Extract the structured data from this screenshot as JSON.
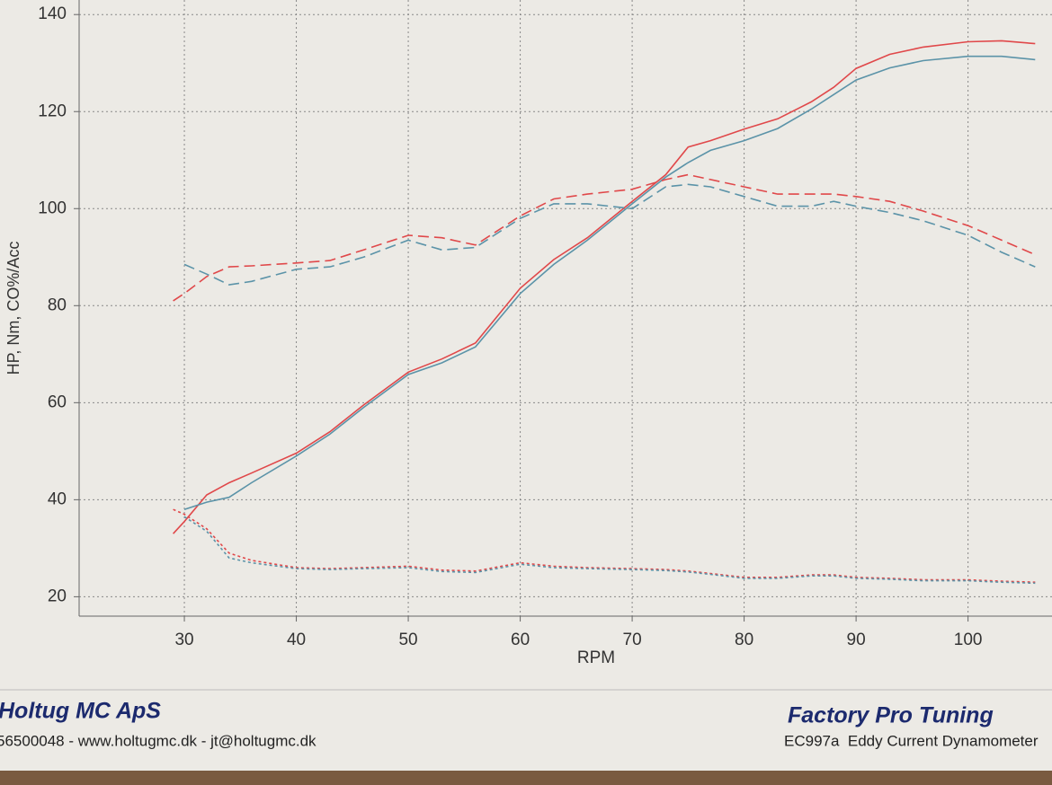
{
  "chart_data": {
    "type": "line",
    "x_label": "RPM",
    "y_label": "HP, Nm, CO%/Acc",
    "xlim": [
      20.6,
      107.5
    ],
    "ylim": [
      16,
      143
    ],
    "xticks": [
      30,
      40,
      50,
      60,
      70,
      80,
      90,
      100
    ],
    "yticks": [
      20,
      40,
      60,
      80,
      100,
      120,
      140
    ],
    "grid": true,
    "x": [
      29,
      30,
      32,
      34,
      36,
      40,
      43,
      46,
      50,
      53,
      56,
      60,
      63,
      66,
      70,
      73,
      75,
      77,
      80,
      83,
      86,
      88,
      90,
      93,
      96,
      100,
      103,
      106
    ],
    "series": [
      {
        "color": "#e0484a",
        "dash": "solid",
        "values": [
          33,
          35.5,
          41,
          43.5,
          45.5,
          49.6,
          54,
          59.5,
          66.3,
          69,
          72.3,
          83.6,
          89.5,
          94,
          101.5,
          107,
          112.7,
          114,
          116.4,
          118.5,
          122,
          125,
          128.9,
          131.8,
          133.3,
          134.4,
          134.6,
          134
        ]
      },
      {
        "color": "#5b93a8",
        "dash": "solid",
        "values": [
          null,
          38,
          39.5,
          40.5,
          43.5,
          49,
          53.5,
          59,
          65.8,
          68.2,
          71.5,
          82.5,
          88.5,
          93.5,
          101,
          106.5,
          109.5,
          112,
          114,
          116.5,
          120.5,
          123.5,
          126.5,
          129,
          130.5,
          131.4,
          131.4,
          130.7
        ]
      },
      {
        "color": "#e0484a",
        "dash": "dashed",
        "values": [
          81,
          82.5,
          86,
          88,
          88.2,
          88.8,
          89.3,
          91.5,
          94.5,
          94,
          92.5,
          98.5,
          102,
          103,
          104,
          106,
          107,
          106,
          104.5,
          103,
          103,
          103,
          102.5,
          101.5,
          99.5,
          96.5,
          93.5,
          90.5
        ]
      },
      {
        "color": "#5b93a8",
        "dash": "dashed",
        "values": [
          null,
          88.5,
          86.5,
          84.3,
          85,
          87.5,
          88,
          90,
          93.5,
          91.5,
          92,
          98,
          101,
          101,
          100,
          104.5,
          105,
          104.5,
          102.5,
          100.5,
          100.5,
          101.5,
          100.5,
          99.2,
          97.5,
          94.5,
          91,
          88
        ]
      },
      {
        "color": "#e0484a",
        "dash": "dotted",
        "values": [
          38,
          37,
          34,
          29,
          27.5,
          26,
          25.8,
          26,
          26.3,
          25.5,
          25.3,
          27,
          26.3,
          26,
          25.8,
          25.6,
          25.3,
          24.8,
          24,
          24,
          24.5,
          24.5,
          24,
          23.8,
          23.5,
          23.5,
          23.2,
          23
        ]
      },
      {
        "color": "#5b93a8",
        "dash": "dotted",
        "values": [
          null,
          36.5,
          33.5,
          28,
          27,
          25.8,
          25.6,
          25.8,
          26,
          25.2,
          25,
          26.7,
          26,
          25.8,
          25.6,
          25.4,
          25.1,
          24.6,
          23.8,
          23.8,
          24.3,
          24.3,
          23.8,
          23.6,
          23.3,
          23.3,
          23,
          22.8
        ]
      }
    ]
  },
  "footer": {
    "company": "Holtug MC ApS",
    "contact": "56500048 - www.holtugmc.dk - jt@holtugmc.dk",
    "brand": "Factory Pro Tuning",
    "model": "EC997a  Eddy Current Dynamometer"
  }
}
